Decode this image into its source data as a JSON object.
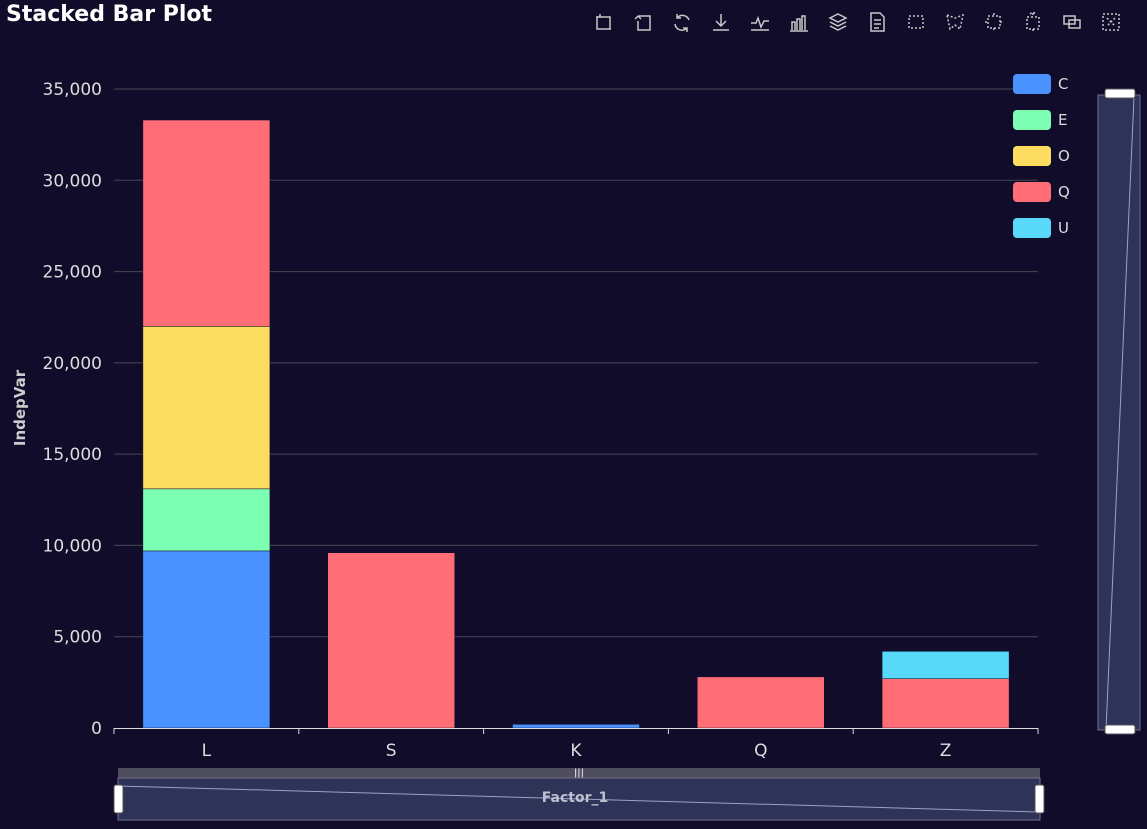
{
  "title": "Stacked Bar Plot",
  "toolbox": {
    "icons": [
      "data-zoom-icon",
      "zoom-reset-icon",
      "restore-icon",
      "download-icon",
      "line-chart-icon",
      "bar-chart-icon",
      "stack-icon",
      "data-view-icon",
      "rect-select-icon",
      "polygon-select-icon",
      "keep-selection-icon",
      "clear-selection-icon",
      "tiled-icon",
      "brush-clear-icon"
    ]
  },
  "colors": {
    "background": "#100c2a",
    "axis": "#dddddd",
    "grid": "#484753",
    "C": "#4992ff",
    "E": "#7cffb2",
    "O": "#fddd60",
    "Q": "#ff6e76",
    "U": "#58d9f9"
  },
  "chart_data": {
    "type": "bar",
    "stacked": true,
    "title": "Stacked Bar Plot",
    "xlabel": "Factor_1",
    "ylabel": "IndepVar",
    "categories": [
      "L",
      "S",
      "K",
      "Q",
      "Z"
    ],
    "ylim": [
      0,
      35000
    ],
    "yticks": [
      0,
      5000,
      10000,
      15000,
      20000,
      25000,
      30000,
      35000
    ],
    "ytick_labels": [
      "0",
      "5,000",
      "10,000",
      "15,000",
      "20,000",
      "25,000",
      "30,000",
      "35,000"
    ],
    "grid": true,
    "legend_position": "top-right",
    "series": [
      {
        "name": "C",
        "values": [
          9700,
          0,
          200,
          0,
          0
        ]
      },
      {
        "name": "E",
        "values": [
          3400,
          0,
          0,
          0,
          0
        ]
      },
      {
        "name": "O",
        "values": [
          8900,
          0,
          0,
          0,
          0
        ]
      },
      {
        "name": "Q",
        "values": [
          11300,
          9600,
          0,
          2800,
          2700
        ]
      },
      {
        "name": "U",
        "values": [
          0,
          0,
          0,
          0,
          1500
        ]
      }
    ],
    "datazoom": {
      "x_slider_handle": "|||",
      "range_start_percent": 0,
      "range_end_percent": 100
    }
  }
}
